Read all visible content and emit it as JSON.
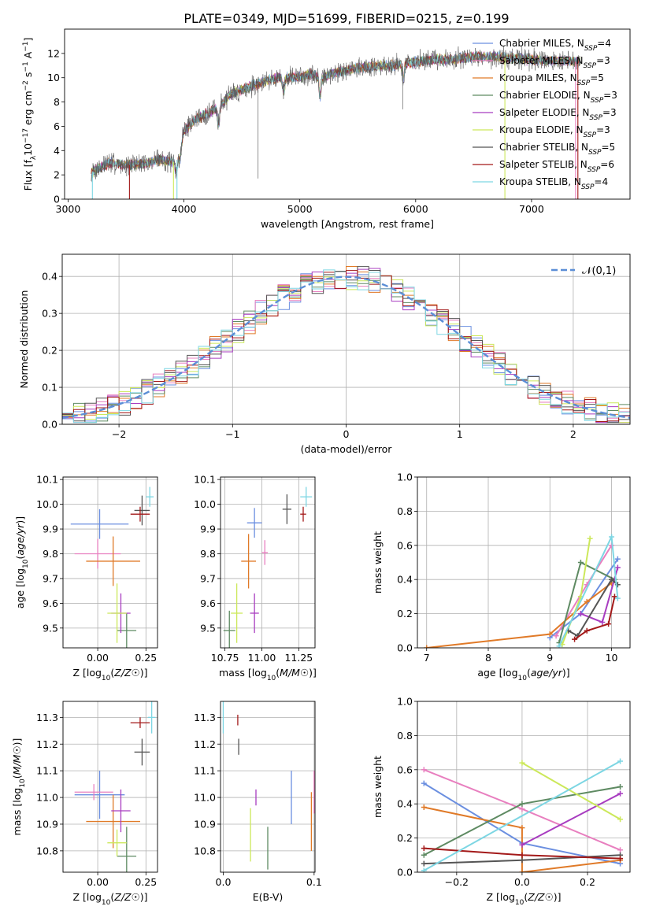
{
  "figure_title": "PLATE=0349, MJD=51699, FIBERID=0215, z=0.199",
  "colors": {
    "Chabrier MILES": "#6b8fe0",
    "Salpeter MILES": "#e87fbf",
    "Kroupa MILES": "#e07a28",
    "Chabrier ELODIE": "#5e8a62",
    "Salpeter ELODIE": "#a83cc0",
    "Kroupa ELODIE": "#cce85a",
    "Chabrier STELIB": "#555555",
    "Salpeter STELIB": "#a31919",
    "Kroupa STELIB": "#7dd6e3"
  },
  "chart_data": [
    {
      "id": "spectrum",
      "type": "line",
      "title": "PLATE=0349, MJD=51699, FIBERID=0215, z=0.199",
      "xlabel": "wavelength [Angstrom, rest frame]",
      "ylabel": "Flux [f_λ 10^-17 erg cm^-2 s^-1 A^-1]",
      "xlim": [
        2970,
        7850
      ],
      "ylim": [
        0,
        14
      ],
      "xticks": [
        3000,
        4000,
        5000,
        6000,
        7000
      ],
      "yticks": [
        0,
        2,
        4,
        6,
        8,
        10,
        12
      ],
      "legend_position": "upper-right",
      "grid": false,
      "legend": [
        {
          "name": "Chabrier MILES",
          "nssp": "4"
        },
        {
          "name": "Salpeter MILES",
          "nssp": "3"
        },
        {
          "name": "Kroupa MILES",
          "nssp": "5"
        },
        {
          "name": "Chabrier ELODIE",
          "nssp": "3"
        },
        {
          "name": "Salpeter ELODIE",
          "nssp": "3"
        },
        {
          "name": "Kroupa ELODIE",
          "nssp": "3"
        },
        {
          "name": "Chabrier STELIB",
          "nssp": "5"
        },
        {
          "name": "Salpeter STELIB",
          "nssp": "6"
        },
        {
          "name": "Kroupa STELIB",
          "nssp": "4"
        }
      ],
      "data_wavelength_range": [
        3200,
        7420
      ],
      "continuum": [
        [
          3200,
          2.2
        ],
        [
          3350,
          3.0
        ],
        [
          3500,
          2.8
        ],
        [
          3650,
          2.9
        ],
        [
          3800,
          3.3
        ],
        [
          3900,
          3.0
        ],
        [
          3950,
          3.3
        ],
        [
          4000,
          5.6
        ],
        [
          4100,
          6.6
        ],
        [
          4200,
          7.0
        ],
        [
          4300,
          7.6
        ],
        [
          4400,
          8.6
        ],
        [
          4500,
          9.0
        ],
        [
          4600,
          9.4
        ],
        [
          4700,
          9.7
        ],
        [
          4800,
          10.0
        ],
        [
          4900,
          10.0
        ],
        [
          5000,
          10.1
        ],
        [
          5100,
          10.3
        ],
        [
          5200,
          10.0
        ],
        [
          5300,
          10.4
        ],
        [
          5400,
          10.6
        ],
        [
          5500,
          10.8
        ],
        [
          5600,
          10.9
        ],
        [
          5700,
          11.0
        ],
        [
          5800,
          11.0
        ],
        [
          5900,
          11.2
        ],
        [
          6000,
          11.3
        ],
        [
          6100,
          11.4
        ],
        [
          6200,
          11.5
        ],
        [
          6300,
          11.5
        ],
        [
          6400,
          11.6
        ],
        [
          6500,
          11.7
        ],
        [
          6600,
          11.7
        ],
        [
          6700,
          11.7
        ],
        [
          6800,
          11.6
        ],
        [
          6900,
          11.6
        ],
        [
          7000,
          11.5
        ],
        [
          7100,
          11.4
        ],
        [
          7200,
          11.4
        ],
        [
          7300,
          11.4
        ],
        [
          7420,
          11.3
        ]
      ],
      "absorption_features": [
        {
          "x": 3933,
          "depth": 1.0
        },
        {
          "x": 3968,
          "depth": 0.8
        },
        {
          "x": 4300,
          "depth": 1.5
        },
        {
          "x": 4861,
          "depth": 1.2
        },
        {
          "x": 5175,
          "depth": 1.6
        },
        {
          "x": 5892,
          "depth": 1.4
        }
      ],
      "spikes": [
        {
          "x": 4640,
          "low": 1.7
        },
        {
          "x": 5890,
          "low": 7.4
        }
      ],
      "model_edges": [
        {
          "x": 3210,
          "series": "Kroupa STELIB"
        },
        {
          "x": 3530,
          "series": "Salpeter STELIB"
        },
        {
          "x": 3910,
          "series": "Kroupa ELODIE"
        },
        {
          "x": 3940,
          "series": "Kroupa STELIB"
        },
        {
          "x": 6770,
          "series": "Kroupa ELODIE"
        },
        {
          "x": 7380,
          "series": "Salpeter MILES"
        },
        {
          "x": 7400,
          "series": "Salpeter STELIB"
        }
      ]
    },
    {
      "id": "residuals",
      "type": "histogram",
      "xlabel": "(data-model)/error",
      "ylabel": "Normed distribution",
      "xlim": [
        -2.5,
        2.5
      ],
      "ylim": [
        0,
        0.46
      ],
      "xticks": [
        -2,
        -1,
        0,
        1,
        2
      ],
      "yticks": [
        0,
        0.1,
        0.2,
        0.3,
        0.4
      ],
      "grid": true,
      "bin_width": 0.1,
      "reference": {
        "name": "𝒩(0,1)",
        "mean": 0,
        "sigma": 1,
        "color": "#5b8ed6"
      },
      "legend_position": "upper-right"
    },
    {
      "id": "age_vs_Z",
      "type": "errorbar",
      "xlabel": "Z [log10(Z/Z☉)]",
      "ylabel": "age [log10(age/yr)]",
      "xlim": [
        -0.18,
        0.31
      ],
      "ylim": [
        9.42,
        10.11
      ],
      "xticks": [
        0,
        0.25
      ],
      "yticks": [
        9.5,
        9.6,
        9.7,
        9.8,
        9.9,
        10.0,
        10.1
      ],
      "grid": true,
      "points": [
        {
          "series": "Chabrier MILES",
          "x": 0.01,
          "xerr": 0.15,
          "y": 9.92,
          "yerr": 0.06
        },
        {
          "series": "Salpeter MILES",
          "x": 0.0,
          "xerr": 0.12,
          "y": 9.8,
          "yerr": 0.06
        },
        {
          "series": "Kroupa MILES",
          "x": 0.08,
          "xerr": 0.14,
          "y": 9.77,
          "yerr": 0.1
        },
        {
          "series": "Chabrier ELODIE",
          "x": 0.15,
          "xerr": 0.05,
          "y": 9.49,
          "yerr": 0.07
        },
        {
          "series": "Salpeter ELODIE",
          "x": 0.12,
          "xerr": 0.05,
          "y": 9.56,
          "yerr": 0.08
        },
        {
          "series": "Kroupa ELODIE",
          "x": 0.1,
          "xerr": 0.05,
          "y": 9.56,
          "yerr": 0.12
        },
        {
          "series": "Chabrier STELIB",
          "x": 0.23,
          "xerr": 0.04,
          "y": 9.975,
          "yerr": 0.06
        },
        {
          "series": "Salpeter STELIB",
          "x": 0.22,
          "xerr": 0.05,
          "y": 9.96,
          "yerr": 0.03
        },
        {
          "series": "Kroupa STELIB",
          "x": 0.27,
          "xerr": 0.02,
          "y": 10.03,
          "yerr": 0.04
        }
      ]
    },
    {
      "id": "age_vs_mass",
      "type": "errorbar",
      "xlabel": "mass [log10(M/M☉)]",
      "ylabel": "",
      "xlim": [
        10.72,
        11.36
      ],
      "ylim": [
        9.42,
        10.11
      ],
      "xticks": [
        10.75,
        11.0,
        11.25
      ],
      "yticks": [
        9.5,
        9.6,
        9.7,
        9.8,
        9.9,
        10.0,
        10.1
      ],
      "grid": true,
      "points": [
        {
          "series": "Chabrier MILES",
          "x": 10.95,
          "xerr": 0.05,
          "y": 9.925,
          "yerr": 0.06
        },
        {
          "series": "Salpeter MILES",
          "x": 11.02,
          "xerr": 0.02,
          "y": 9.805,
          "yerr": 0.05
        },
        {
          "series": "Kroupa MILES",
          "x": 10.91,
          "xerr": 0.05,
          "y": 9.77,
          "yerr": 0.11
        },
        {
          "series": "Chabrier ELODIE",
          "x": 10.78,
          "xerr": 0.04,
          "y": 9.49,
          "yerr": 0.08
        },
        {
          "series": "Salpeter ELODIE",
          "x": 10.95,
          "xerr": 0.03,
          "y": 9.56,
          "yerr": 0.08
        },
        {
          "series": "Kroupa ELODIE",
          "x": 10.83,
          "xerr": 0.04,
          "y": 9.56,
          "yerr": 0.12
        },
        {
          "series": "Chabrier STELIB",
          "x": 11.17,
          "xerr": 0.03,
          "y": 9.98,
          "yerr": 0.06
        },
        {
          "series": "Salpeter STELIB",
          "x": 11.28,
          "xerr": 0.02,
          "y": 9.96,
          "yerr": 0.03
        },
        {
          "series": "Kroupa STELIB",
          "x": 11.3,
          "xerr": 0.04,
          "y": 10.03,
          "yerr": 0.04
        }
      ]
    },
    {
      "id": "massweight_vs_age",
      "type": "line",
      "xlabel": "age [log10(age/yr)]",
      "ylabel": "mass weight",
      "xlim": [
        6.85,
        10.3
      ],
      "ylim": [
        0,
        1
      ],
      "xticks": [
        7,
        8,
        9,
        10
      ],
      "yticks": [
        0,
        0.2,
        0.4,
        0.6,
        0.8,
        1.0
      ],
      "grid": true,
      "series": [
        {
          "name": "Chabrier MILES",
          "points": [
            [
              9.0,
              0.06
            ],
            [
              9.5,
              0.2
            ],
            [
              10.1,
              0.52
            ]
          ]
        },
        {
          "name": "Salpeter MILES",
          "points": [
            [
              9.1,
              0.07
            ],
            [
              9.6,
              0.37
            ],
            [
              10.0,
              0.6
            ]
          ]
        },
        {
          "name": "Kroupa MILES",
          "points": [
            [
              7.0,
              0.0
            ],
            [
              9.0,
              0.08
            ],
            [
              9.6,
              0.27
            ],
            [
              10.0,
              0.38
            ]
          ]
        },
        {
          "name": "Chabrier ELODIE",
          "points": [
            [
              9.15,
              0.03
            ],
            [
              9.5,
              0.5
            ],
            [
              10.05,
              0.4
            ]
          ]
        },
        {
          "name": "Salpeter ELODIE",
          "points": [
            [
              9.5,
              0.2
            ],
            [
              9.85,
              0.15
            ],
            [
              10.1,
              0.47
            ]
          ]
        },
        {
          "name": "Kroupa ELODIE",
          "points": [
            [
              9.2,
              0.02
            ],
            [
              9.5,
              0.3
            ],
            [
              9.65,
              0.64
            ]
          ]
        },
        {
          "name": "Chabrier STELIB",
          "points": [
            [
              9.3,
              0.1
            ],
            [
              9.45,
              0.07
            ],
            [
              10.0,
              0.4
            ],
            [
              10.1,
              0.37
            ]
          ]
        },
        {
          "name": "Salpeter STELIB",
          "points": [
            [
              9.4,
              0.05
            ],
            [
              9.6,
              0.1
            ],
            [
              9.95,
              0.14
            ],
            [
              10.05,
              0.3
            ]
          ]
        },
        {
          "name": "Kroupa STELIB",
          "points": [
            [
              9.15,
              0.01
            ],
            [
              10.0,
              0.65
            ],
            [
              10.1,
              0.29
            ]
          ]
        }
      ]
    },
    {
      "id": "mass_vs_Z",
      "type": "errorbar",
      "xlabel": "Z [log10(Z/Z☉)]",
      "ylabel": "mass [log10(M/M☉)]",
      "xlim": [
        -0.18,
        0.31
      ],
      "ylim": [
        10.72,
        11.36
      ],
      "xticks": [
        0,
        0.25
      ],
      "yticks": [
        10.8,
        10.9,
        11.0,
        11.1,
        11.2,
        11.3
      ],
      "grid": true,
      "points": [
        {
          "series": "Chabrier MILES",
          "x": 0.01,
          "xerr": 0.13,
          "y": 11.01,
          "yerr": 0.09
        },
        {
          "series": "Salpeter MILES",
          "x": -0.02,
          "xerr": 0.1,
          "y": 11.02,
          "yerr": 0.03
        },
        {
          "series": "Kroupa MILES",
          "x": 0.08,
          "xerr": 0.14,
          "y": 10.91,
          "yerr": 0.1
        },
        {
          "series": "Chabrier ELODIE",
          "x": 0.15,
          "xerr": 0.05,
          "y": 10.78,
          "yerr": 0.11
        },
        {
          "series": "Salpeter ELODIE",
          "x": 0.12,
          "xerr": 0.05,
          "y": 10.95,
          "yerr": 0.08
        },
        {
          "series": "Kroupa ELODIE",
          "x": 0.1,
          "xerr": 0.05,
          "y": 10.83,
          "yerr": 0.05
        },
        {
          "series": "Chabrier STELIB",
          "x": 0.23,
          "xerr": 0.04,
          "y": 11.17,
          "yerr": 0.05
        },
        {
          "series": "Salpeter STELIB",
          "x": 0.22,
          "xerr": 0.05,
          "y": 11.28,
          "yerr": 0.02
        },
        {
          "series": "Kroupa STELIB",
          "x": 0.28,
          "xerr": 0.02,
          "y": 11.3,
          "yerr": 0.06
        }
      ]
    },
    {
      "id": "mass_vs_ebv",
      "type": "errorbar",
      "xlabel": "E(B-V)",
      "ylabel": "",
      "xlim": [
        -0.003,
        0.101
      ],
      "ylim": [
        10.72,
        11.36
      ],
      "xticks": [
        0,
        0.1
      ],
      "yticks": [
        10.8,
        10.9,
        11.0,
        11.1,
        11.2,
        11.3
      ],
      "grid": true,
      "points": [
        {
          "series": "Chabrier MILES",
          "x": 0.075,
          "y": 11.0,
          "yerr": 0.1
        },
        {
          "series": "Salpeter MILES",
          "x": 0.1,
          "y": 11.02,
          "yerr": 0.08
        },
        {
          "series": "Kroupa MILES",
          "x": 0.097,
          "y": 10.91,
          "yerr": 0.11
        },
        {
          "series": "Chabrier ELODIE",
          "x": 0.049,
          "y": 10.81,
          "yerr": 0.08
        },
        {
          "series": "Salpeter ELODIE",
          "x": 0.036,
          "y": 11.0,
          "yerr": 0.03
        },
        {
          "series": "Kroupa ELODIE",
          "x": 0.03,
          "y": 10.86,
          "yerr": 0.1
        },
        {
          "series": "Chabrier STELIB",
          "x": 0.017,
          "y": 11.19,
          "yerr": 0.03
        },
        {
          "series": "Salpeter STELIB",
          "x": 0.016,
          "y": 11.29,
          "yerr": 0.02
        },
        {
          "series": "Kroupa STELIB",
          "x": 0.0,
          "y": 11.3,
          "yerr": 0.06
        }
      ]
    },
    {
      "id": "massweight_vs_Z",
      "type": "line",
      "xlabel": "Z [log10(Z/Z☉)]",
      "ylabel": "mass weight",
      "xlim": [
        -0.32,
        0.33
      ],
      "ylim": [
        0,
        1
      ],
      "xticks": [
        -0.2,
        0.0,
        0.2
      ],
      "yticks": [
        0,
        0.2,
        0.4,
        0.6,
        0.8,
        1.0
      ],
      "grid": true,
      "series": [
        {
          "name": "Chabrier MILES",
          "points": [
            [
              -0.3,
              0.52
            ],
            [
              0.0,
              0.17
            ],
            [
              0.3,
              0.05
            ]
          ]
        },
        {
          "name": "Salpeter MILES",
          "points": [
            [
              -0.3,
              0.6
            ],
            [
              0.0,
              0.37
            ],
            [
              0.3,
              0.13
            ]
          ]
        },
        {
          "name": "Kroupa MILES",
          "points": [
            [
              -0.3,
              0.38
            ],
            [
              0.0,
              0.26
            ],
            [
              0.0,
              0.0
            ],
            [
              0.3,
              0.07
            ]
          ]
        },
        {
          "name": "Chabrier ELODIE",
          "points": [
            [
              -0.3,
              0.1
            ],
            [
              0.0,
              0.4
            ],
            [
              0.3,
              0.5
            ]
          ]
        },
        {
          "name": "Salpeter ELODIE",
          "points": [
            [
              0.0,
              0.16
            ],
            [
              0.3,
              0.46
            ]
          ]
        },
        {
          "name": "Kroupa ELODIE",
          "points": [
            [
              0.0,
              0.64
            ],
            [
              0.3,
              0.31
            ]
          ]
        },
        {
          "name": "Chabrier STELIB",
          "points": [
            [
              -0.3,
              0.05
            ],
            [
              0.0,
              0.07
            ],
            [
              0.3,
              0.1
            ]
          ]
        },
        {
          "name": "Salpeter STELIB",
          "points": [
            [
              -0.3,
              0.14
            ],
            [
              0.0,
              0.1
            ],
            [
              0.3,
              0.08
            ]
          ]
        },
        {
          "name": "Kroupa STELIB",
          "points": [
            [
              -0.3,
              0.01
            ],
            [
              0.3,
              0.65
            ]
          ]
        }
      ]
    }
  ]
}
